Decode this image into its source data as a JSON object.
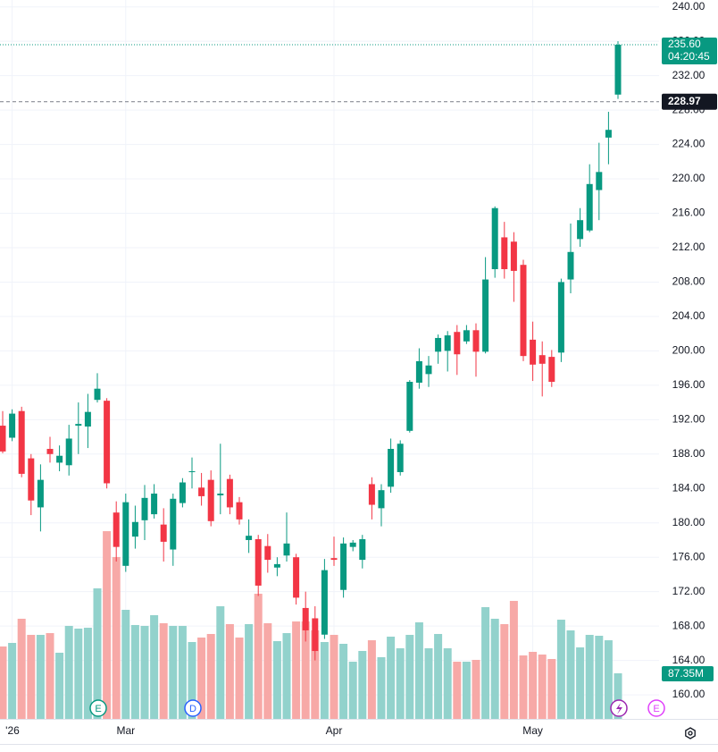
{
  "chart_data": {
    "type": "candlestick",
    "categories": [
      null,
      "'26",
      null,
      null,
      null,
      null,
      null,
      null,
      null,
      null,
      null,
      null,
      null,
      "Mar",
      null,
      null,
      null,
      null,
      null,
      null,
      null,
      null,
      null,
      null,
      null,
      null,
      null,
      null,
      null,
      null,
      null,
      null,
      null,
      null,
      null,
      "Apr",
      null,
      null,
      null,
      null,
      null,
      null,
      null,
      null,
      null,
      null,
      null,
      null,
      null,
      null,
      null,
      null,
      null,
      null,
      null,
      null,
      "May",
      null,
      null,
      null,
      null,
      null,
      null,
      null,
      null,
      null
    ],
    "open": [
      191.3,
      189.9,
      193.0,
      187.5,
      181.8,
      188.6,
      187.0,
      186.7,
      191.3,
      191.2,
      194.3,
      194.2,
      181.2,
      175.0,
      178.4,
      180.3,
      181.0,
      179.8,
      176.9,
      182.3,
      185.9,
      184.1,
      185.0,
      183.2,
      185.1,
      182.4,
      178.0,
      178.1,
      177.3,
      174.8,
      176.2,
      176.0,
      170.1,
      168.9,
      167.0,
      175.9,
      172.2,
      177.2,
      175.7,
      184.5,
      181.7,
      184.2,
      185.9,
      190.7,
      196.3,
      197.3,
      199.9,
      200.0,
      202.2,
      201.1,
      202.4,
      199.9,
      209.5,
      213.2,
      212.7,
      210.0,
      201.3,
      199.5,
      199.3,
      199.8,
      208.3,
      213.0,
      214.0,
      218.7,
      224.8,
      229.8
    ],
    "high": [
      193.0,
      193.2,
      193.5,
      188.0,
      186.8,
      190.0,
      189.0,
      191.4,
      194.0,
      195.0,
      197.4,
      194.5,
      182.5,
      183.4,
      182.0,
      184.4,
      184.5,
      181.7,
      183.4,
      185.2,
      187.6,
      185.8,
      186.1,
      189.2,
      185.6,
      183.0,
      180.4,
      178.6,
      178.7,
      176.0,
      181.2,
      176.4,
      172.0,
      170.3,
      175.8,
      178.4,
      178.3,
      178.0,
      178.6,
      185.3,
      184.5,
      189.8,
      189.6,
      196.6,
      200.3,
      199.4,
      201.9,
      202.3,
      203.0,
      203.0,
      203.2,
      210.9,
      216.8,
      215.0,
      213.8,
      210.6,
      203.4,
      201.1,
      200.1,
      208.4,
      214.8,
      216.6,
      221.7,
      224.2,
      227.8,
      236.0
    ],
    "low": [
      188.1,
      189.5,
      185.3,
      180.9,
      179.0,
      187.0,
      186.0,
      185.5,
      188.0,
      188.7,
      194.0,
      184.0,
      175.5,
      174.3,
      177.0,
      178.0,
      180.5,
      175.5,
      175.0,
      181.8,
      184.0,
      182.0,
      179.6,
      181.0,
      181.0,
      179.8,
      176.5,
      171.5,
      174.2,
      173.8,
      175.5,
      170.5,
      166.2,
      164.0,
      166.5,
      175.0,
      171.3,
      176.7,
      174.7,
      180.4,
      179.6,
      183.5,
      185.5,
      190.5,
      195.6,
      195.8,
      198.5,
      197.6,
      197.2,
      200.8,
      197.0,
      199.7,
      208.5,
      208.4,
      205.7,
      198.8,
      196.5,
      194.7,
      195.8,
      198.7,
      206.7,
      212.1,
      213.8,
      215.2,
      221.7,
      229.3
    ],
    "close": [
      188.3,
      192.7,
      185.7,
      182.6,
      185.0,
      188.0,
      187.8,
      189.8,
      191.5,
      192.9,
      195.6,
      184.6,
      177.2,
      182.4,
      180.1,
      182.9,
      183.4,
      177.8,
      182.8,
      184.7,
      186.0,
      183.1,
      180.2,
      183.4,
      181.8,
      180.4,
      178.5,
      172.7,
      175.7,
      175.2,
      177.6,
      171.3,
      167.5,
      165.1,
      174.5,
      175.7,
      177.6,
      177.7,
      178.1,
      182.1,
      183.8,
      188.6,
      189.2,
      196.4,
      198.8,
      198.3,
      201.5,
      201.8,
      199.6,
      202.4,
      199.9,
      208.3,
      216.6,
      209.5,
      209.3,
      199.4,
      198.4,
      198.5,
      196.4,
      208.0,
      211.5,
      215.2,
      219.4,
      220.8,
      225.7,
      235.6
    ],
    "volume": [
      138.8,
      145.6,
      191.9,
      161.0,
      161.0,
      164.4,
      126.8,
      178.2,
      173.0,
      174.7,
      250.1,
      359.7,
      310.1,
      209.0,
      179.9,
      178.2,
      198.7,
      183.3,
      178.2,
      178.2,
      147.3,
      155.9,
      162.7,
      215.8,
      181.6,
      155.9,
      181.6,
      239.8,
      183.3,
      149.0,
      164.4,
      186.7,
      186.7,
      169.6,
      147.3,
      161.0,
      143.9,
      109.6,
      130.2,
      150.7,
      118.2,
      157.6,
      135.3,
      161.0,
      185.0,
      135.3,
      162.7,
      135.3,
      109.6,
      109.6,
      113.1,
      214.1,
      191.9,
      181.6,
      226.1,
      121.6,
      128.5,
      123.3,
      114.8,
      190.1,
      169.6,
      137.0,
      161.0,
      159.3,
      150.7,
      87.35
    ],
    "ylim": [
      157.2,
      240.8
    ],
    "yticks": [
      {
        "value": 160,
        "label": "160.00"
      },
      {
        "value": 164,
        "label": "164.00"
      },
      {
        "value": 168,
        "label": "168.00"
      },
      {
        "value": 172,
        "label": "172.00"
      },
      {
        "value": 176,
        "label": "176.00"
      },
      {
        "value": 180,
        "label": "180.00"
      },
      {
        "value": 184,
        "label": "184.00"
      },
      {
        "value": 188,
        "label": "188.00"
      },
      {
        "value": 192,
        "label": "192.00"
      },
      {
        "value": 196,
        "label": "196.00"
      },
      {
        "value": 200,
        "label": "200.00"
      },
      {
        "value": 204,
        "label": "204.00"
      },
      {
        "value": 208,
        "label": "208.00"
      },
      {
        "value": 212,
        "label": "212.00"
      },
      {
        "value": 216,
        "label": "216.00"
      },
      {
        "value": 220,
        "label": "220.00"
      },
      {
        "value": 224,
        "label": "224.00"
      },
      {
        "value": 228,
        "label": "228.00"
      },
      {
        "value": 232,
        "label": "232.00"
      },
      {
        "value": 236,
        "label": "236.00"
      },
      {
        "value": 240,
        "label": "240.00"
      }
    ],
    "volume_ylim": [
      0,
      400
    ],
    "up_color": "#089981",
    "down_color": "#f23645",
    "up_volume_color": "#92d2cc",
    "down_volume_color": "#f7a9a7",
    "grid": true,
    "last_price": {
      "value": 235.6,
      "label": "235.60"
    },
    "countdown": "04:20:45",
    "prev_close": {
      "value": 228.97,
      "label": "228.97"
    },
    "volume_badge": {
      "value": 87.35,
      "label": "87.35M"
    },
    "events": [
      "E",
      "D",
      "E"
    ]
  }
}
